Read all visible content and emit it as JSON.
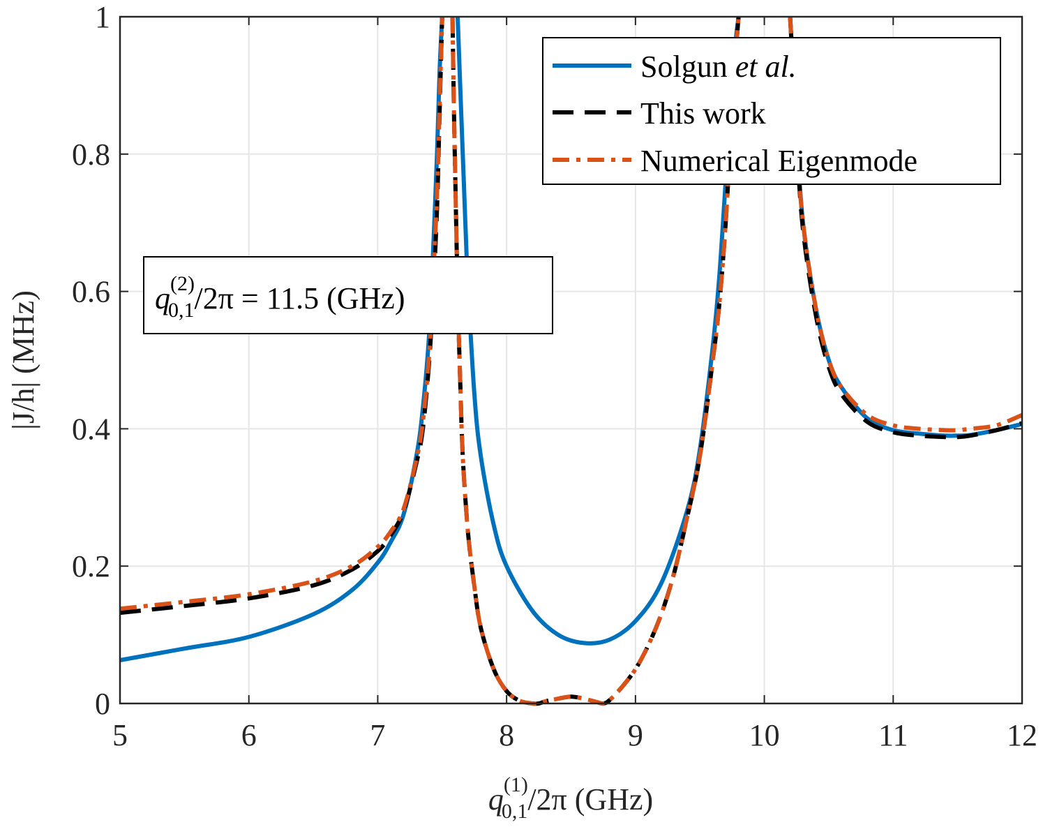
{
  "chart_data": {
    "type": "line",
    "xlabel": {
      "pre": "q",
      "sup": "(1)",
      "sub": "0,1",
      "post": "/2π  (GHz)"
    },
    "ylabel": "|J/h|  (MHz)",
    "xlim": [
      5,
      12
    ],
    "ylim": [
      0,
      1
    ],
    "xticks": [
      "5",
      "6",
      "7",
      "8",
      "9",
      "10",
      "11",
      "12"
    ],
    "yticks": [
      "0",
      "0.2",
      "0.4",
      "0.6",
      "0.8",
      "1"
    ],
    "grid": true,
    "legend_position": "top-right",
    "annotation": {
      "pre": "q",
      "sup": "(2)",
      "sub": "0,1",
      "post": "/2π = 11.5 (GHz)"
    },
    "series": [
      {
        "name": "Solgun",
        "name_italic": "et al.",
        "color": "#0072BD",
        "style": "solid",
        "x": [
          5.0,
          5.5,
          6.0,
          6.5,
          6.8,
          7.0,
          7.1,
          7.2,
          7.3,
          7.35,
          7.4,
          7.43,
          7.46,
          7.48,
          7.5,
          null,
          7.62,
          7.64,
          7.66,
          7.68,
          7.7,
          7.75,
          7.8,
          7.9,
          8.0,
          8.2,
          8.4,
          8.6,
          8.8,
          9.0,
          9.2,
          9.4,
          9.5,
          9.6,
          9.65,
          9.7,
          9.74,
          9.77,
          9.8,
          null,
          10.2,
          10.23,
          10.25,
          10.3,
          10.4,
          10.5,
          10.6,
          10.8,
          11.0,
          11.2,
          11.4,
          11.5,
          11.6,
          11.8,
          12.0
        ],
        "y": [
          0.063,
          0.08,
          0.097,
          0.13,
          0.165,
          0.205,
          0.235,
          0.275,
          0.36,
          0.43,
          0.54,
          0.66,
          0.8,
          0.92,
          1.0,
          null,
          1.0,
          0.9,
          0.8,
          0.7,
          0.61,
          0.45,
          0.36,
          0.26,
          0.2,
          0.135,
          0.1,
          0.088,
          0.093,
          0.12,
          0.175,
          0.28,
          0.37,
          0.52,
          0.62,
          0.76,
          0.86,
          0.95,
          1.0,
          null,
          1.0,
          0.9,
          0.83,
          0.7,
          0.575,
          0.5,
          0.46,
          0.415,
          0.398,
          0.393,
          0.39,
          0.39,
          0.391,
          0.398,
          0.407
        ]
      },
      {
        "name": "This work",
        "color": "#000000",
        "style": "dashed",
        "x": [
          5.0,
          5.5,
          6.0,
          6.5,
          6.8,
          7.0,
          7.1,
          7.2,
          7.3,
          7.35,
          7.4,
          7.43,
          7.46,
          7.48,
          7.5,
          null,
          7.58,
          7.59,
          7.6,
          7.62,
          7.64,
          7.66,
          7.7,
          7.75,
          7.8,
          7.9,
          8.0,
          8.1,
          8.2,
          8.25,
          8.3,
          8.4,
          8.5,
          8.6,
          8.7,
          8.75,
          8.8,
          8.9,
          9.0,
          9.1,
          9.2,
          9.3,
          9.4,
          9.5,
          9.6,
          9.65,
          9.7,
          9.74,
          9.78,
          9.8,
          null,
          10.2,
          10.23,
          10.25,
          10.3,
          10.4,
          10.5,
          10.6,
          10.8,
          11.0,
          11.2,
          11.4,
          11.5,
          11.6,
          11.8,
          12.0
        ],
        "y": [
          0.132,
          0.142,
          0.153,
          0.172,
          0.195,
          0.222,
          0.245,
          0.28,
          0.35,
          0.4,
          0.5,
          0.6,
          0.72,
          0.86,
          1.0,
          null,
          1.0,
          0.88,
          0.78,
          0.6,
          0.47,
          0.36,
          0.25,
          0.17,
          0.11,
          0.05,
          0.018,
          0.004,
          0.0,
          0.0,
          0.003,
          0.007,
          0.01,
          0.007,
          0.002,
          0.0,
          0.005,
          0.025,
          0.05,
          0.085,
          0.13,
          0.19,
          0.27,
          0.36,
          0.5,
          0.58,
          0.7,
          0.83,
          0.95,
          1.0,
          null,
          1.0,
          0.9,
          0.82,
          0.69,
          0.565,
          0.49,
          0.45,
          0.41,
          0.395,
          0.39,
          0.388,
          0.388,
          0.39,
          0.398,
          0.408
        ]
      },
      {
        "name": "Numerical Eigenmode",
        "color": "#D95319",
        "style": "dashdot",
        "x": [
          5.0,
          5.5,
          6.0,
          6.5,
          6.8,
          7.0,
          7.1,
          7.2,
          7.3,
          7.35,
          7.4,
          7.43,
          7.46,
          7.48,
          7.5,
          null,
          7.58,
          7.59,
          7.6,
          7.62,
          7.64,
          7.66,
          7.7,
          7.75,
          7.8,
          7.9,
          8.0,
          8.1,
          8.2,
          8.25,
          8.3,
          8.4,
          8.5,
          8.6,
          8.7,
          8.75,
          8.8,
          8.9,
          9.0,
          9.1,
          9.2,
          9.3,
          9.4,
          9.5,
          9.6,
          9.65,
          9.7,
          9.74,
          9.78,
          9.8,
          null,
          10.2,
          10.23,
          10.25,
          10.3,
          10.4,
          10.5,
          10.6,
          10.8,
          11.0,
          11.2,
          11.4,
          11.5,
          11.6,
          11.8,
          12.0
        ],
        "y": [
          0.138,
          0.148,
          0.159,
          0.178,
          0.2,
          0.228,
          0.25,
          0.283,
          0.355,
          0.41,
          0.51,
          0.62,
          0.74,
          0.87,
          1.0,
          null,
          1.0,
          0.88,
          0.78,
          0.6,
          0.47,
          0.36,
          0.25,
          0.17,
          0.11,
          0.05,
          0.018,
          0.004,
          0.0,
          0.0,
          0.003,
          0.007,
          0.01,
          0.007,
          0.002,
          0.0,
          0.005,
          0.025,
          0.05,
          0.085,
          0.13,
          0.19,
          0.27,
          0.36,
          0.5,
          0.58,
          0.7,
          0.83,
          0.95,
          1.0,
          null,
          1.0,
          0.9,
          0.82,
          0.7,
          0.575,
          0.5,
          0.46,
          0.42,
          0.405,
          0.4,
          0.398,
          0.398,
          0.4,
          0.405,
          0.42
        ]
      }
    ]
  }
}
